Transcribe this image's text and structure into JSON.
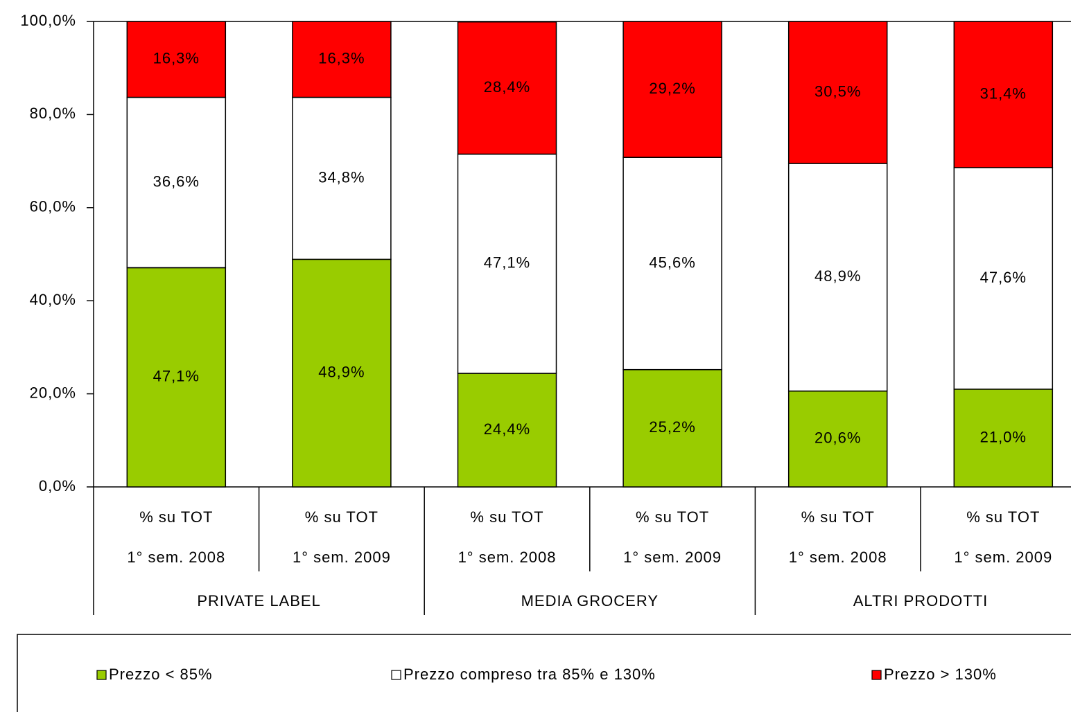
{
  "chart_data": {
    "type": "stacked_bar",
    "categories": [
      [
        "% su TOT",
        "1° sem. 2008"
      ],
      [
        "% su TOT",
        "1° sem. 2009"
      ],
      [
        "% su TOT",
        "1° sem. 2008"
      ],
      [
        "% su TOT",
        "1° sem. 2009"
      ],
      [
        "% su TOT",
        "1° sem. 2008"
      ],
      [
        "% su TOT",
        "1° sem. 2009"
      ]
    ],
    "groups": [
      "PRIVATE LABEL",
      "MEDIA GROCERY",
      "ALTRI PRODOTTI"
    ],
    "series": [
      {
        "name": "Prezzo < 85%",
        "color": "#99cc00",
        "values": [
          47.1,
          48.9,
          24.4,
          25.2,
          20.6,
          21.0
        ],
        "value_labels": [
          "47,1%",
          "48,9%",
          "24,4%",
          "25,2%",
          "20,6%",
          "21,0%"
        ]
      },
      {
        "name": "Prezzo compreso tra 85% e 130%",
        "color": "#ffffff",
        "values": [
          36.6,
          34.8,
          47.1,
          45.6,
          48.9,
          47.6
        ],
        "value_labels": [
          "36,6%",
          "34,8%",
          "47,1%",
          "45,6%",
          "48,9%",
          "47,6%"
        ]
      },
      {
        "name": "Prezzo > 130%",
        "color": "#ff0000",
        "values": [
          16.3,
          16.3,
          28.4,
          29.2,
          30.5,
          31.4
        ],
        "value_labels": [
          "16,3%",
          "16,3%",
          "28,4%",
          "29,2%",
          "30,5%",
          "31,4%"
        ]
      }
    ],
    "ylim": [
      0,
      100
    ],
    "yticks": [
      {
        "value": 0,
        "label": "0,0%"
      },
      {
        "value": 20,
        "label": "20,0%"
      },
      {
        "value": 40,
        "label": "40,0%"
      },
      {
        "value": 60,
        "label": "60,0%"
      },
      {
        "value": 80,
        "label": "80,0%"
      },
      {
        "value": 100,
        "label": "100,0%"
      }
    ],
    "legend": "bottom"
  }
}
